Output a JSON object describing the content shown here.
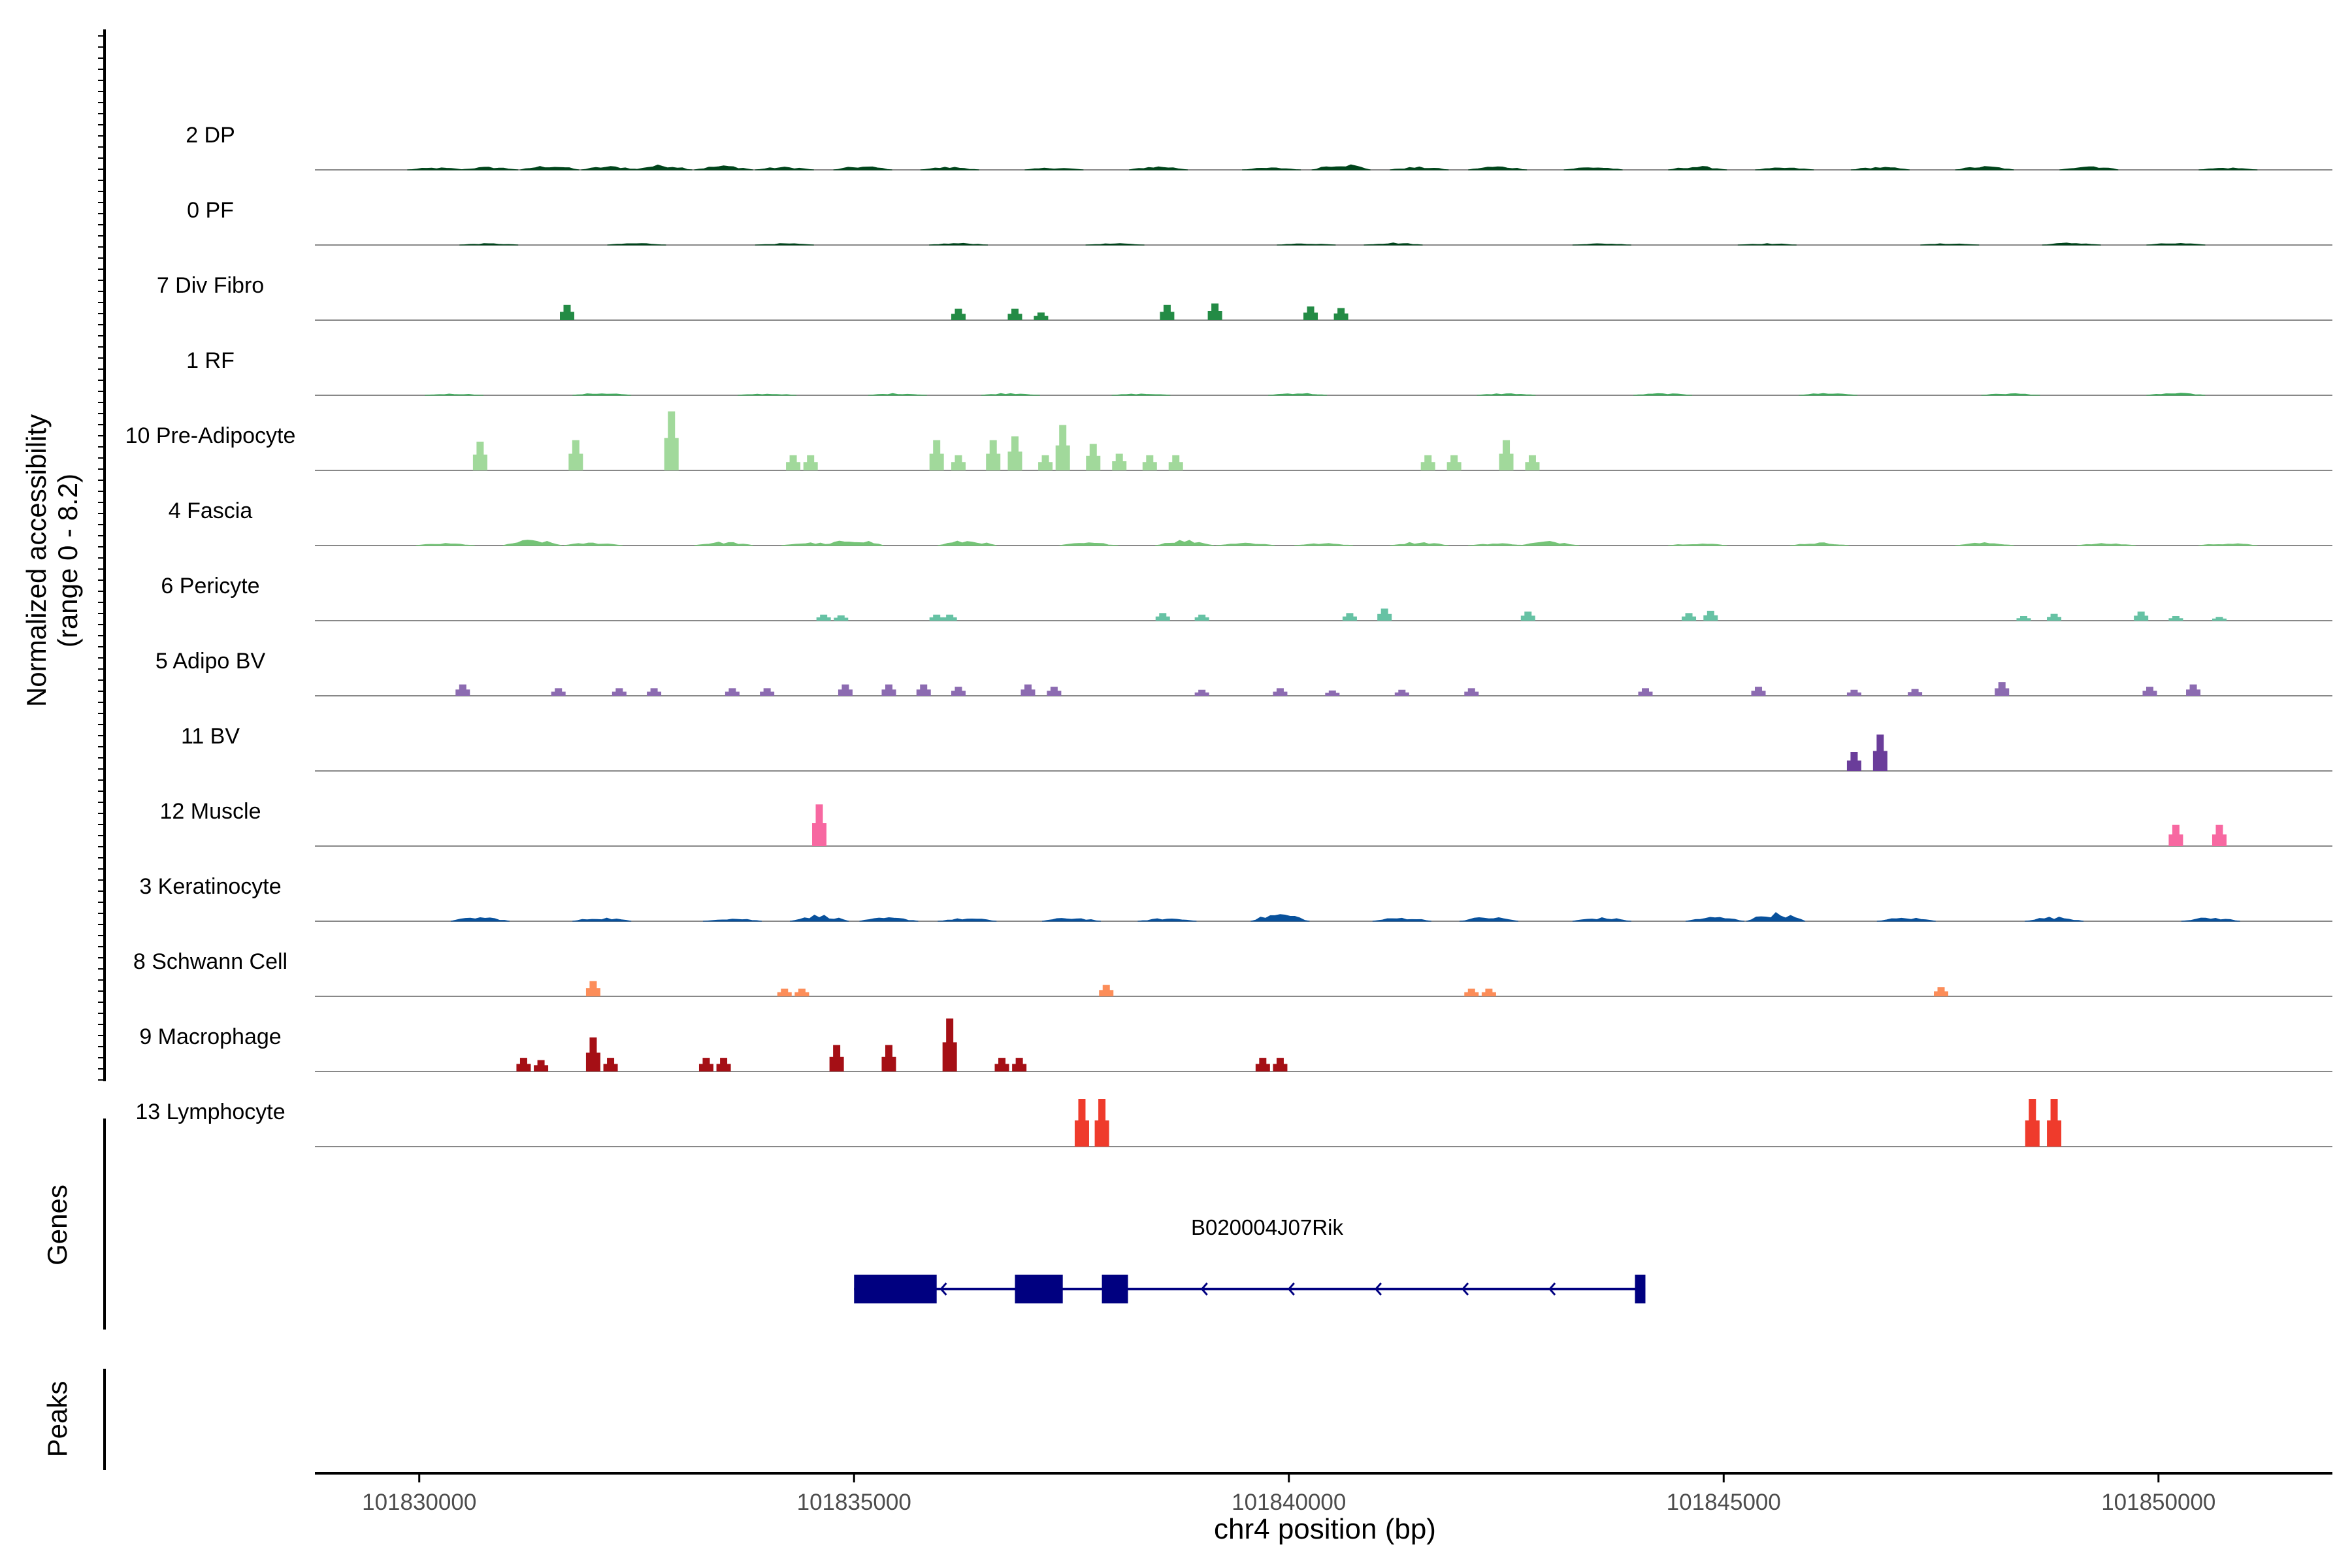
{
  "chart_data": {
    "type": "area",
    "title": "",
    "ylabel_lines": [
      "Normalized accessibility",
      "(range 0 - 8.2)"
    ],
    "y_range": [
      0,
      8.2
    ],
    "xlabel": "chr4 position (bp)",
    "x_range": [
      101828800,
      101852000
    ],
    "x_ticks": [
      101830000,
      101835000,
      101840000,
      101845000,
      101850000
    ],
    "x_tick_labels": [
      "101830000",
      "101835000",
      "101840000",
      "101845000",
      "101850000"
    ],
    "genes_label": "Genes",
    "peaks_label": "Peaks",
    "tracks": [
      {
        "name": "2 DP",
        "color": "#00441b",
        "style": "dense",
        "peaks": [
          [
            101830200,
            0.3
          ],
          [
            101830800,
            0.4
          ],
          [
            101831500,
            0.6
          ],
          [
            101832200,
            0.5
          ],
          [
            101832800,
            0.7
          ],
          [
            101833500,
            0.6
          ],
          [
            101834200,
            0.4
          ],
          [
            101835100,
            0.5
          ],
          [
            101836100,
            0.4
          ],
          [
            101837300,
            0.3
          ],
          [
            101838500,
            0.5
          ],
          [
            101839800,
            0.3
          ],
          [
            101840600,
            0.9
          ],
          [
            101841500,
            0.4
          ],
          [
            101842400,
            0.5
          ],
          [
            101843500,
            0.4
          ],
          [
            101844700,
            0.5
          ],
          [
            101845700,
            0.3
          ],
          [
            101846800,
            0.4
          ],
          [
            101848000,
            0.5
          ],
          [
            101849200,
            0.6
          ],
          [
            101850800,
            0.3
          ]
        ]
      },
      {
        "name": "0 PF",
        "color": "#00441b",
        "style": "dense",
        "peaks": [
          [
            101830800,
            0.2
          ],
          [
            101832500,
            0.25
          ],
          [
            101834200,
            0.2
          ],
          [
            101836200,
            0.25
          ],
          [
            101838000,
            0.2
          ],
          [
            101840200,
            0.2
          ],
          [
            101841200,
            0.3
          ],
          [
            101843600,
            0.2
          ],
          [
            101845500,
            0.2
          ],
          [
            101847600,
            0.2
          ],
          [
            101849000,
            0.3
          ],
          [
            101850200,
            0.25
          ]
        ]
      },
      {
        "name": "7 Div Fibro",
        "color": "#238b45",
        "style": "sparse",
        "peaks": [
          [
            101831700,
            2.0
          ],
          [
            101836200,
            1.5
          ],
          [
            101836850,
            1.5
          ],
          [
            101837150,
            1.0
          ],
          [
            101838600,
            2.0
          ],
          [
            101839150,
            2.2
          ],
          [
            101840250,
            1.8
          ],
          [
            101840600,
            1.6
          ]
        ]
      },
      {
        "name": "1 RF",
        "color": "#41ab5d",
        "style": "dense",
        "peaks": [
          [
            101830400,
            0.2
          ],
          [
            101832100,
            0.3
          ],
          [
            101834000,
            0.2
          ],
          [
            101835500,
            0.25
          ],
          [
            101836800,
            0.3
          ],
          [
            101838300,
            0.2
          ],
          [
            101840100,
            0.3
          ],
          [
            101842500,
            0.25
          ],
          [
            101844300,
            0.25
          ],
          [
            101846200,
            0.3
          ],
          [
            101848300,
            0.25
          ],
          [
            101850200,
            0.3
          ]
        ]
      },
      {
        "name": "10 Pre-Adipocyte",
        "color": "#a1d99b",
        "style": "sparse",
        "peaks": [
          [
            101830700,
            3.8
          ],
          [
            101831800,
            4.0
          ],
          [
            101832900,
            7.8
          ],
          [
            101834300,
            2.0
          ],
          [
            101834500,
            2.0
          ],
          [
            101835950,
            4.0
          ],
          [
            101836200,
            2.0
          ],
          [
            101836600,
            4.0
          ],
          [
            101836850,
            4.5
          ],
          [
            101837200,
            2.0
          ],
          [
            101837400,
            6.0
          ],
          [
            101837750,
            3.5
          ],
          [
            101838050,
            2.2
          ],
          [
            101838400,
            2.0
          ],
          [
            101838700,
            2.0
          ],
          [
            101841600,
            2.0
          ],
          [
            101841900,
            2.0
          ],
          [
            101842500,
            4.0
          ],
          [
            101842800,
            2.0
          ]
        ]
      },
      {
        "name": "4 Fascia",
        "color": "#74c476",
        "style": "dense",
        "peaks": [
          [
            101830300,
            0.3
          ],
          [
            101831300,
            0.8
          ],
          [
            101832000,
            0.4
          ],
          [
            101833500,
            0.5
          ],
          [
            101834500,
            0.4
          ],
          [
            101835000,
            0.9
          ],
          [
            101836300,
            0.7
          ],
          [
            101837700,
            0.4
          ],
          [
            101838800,
            0.8
          ],
          [
            101839500,
            0.4
          ],
          [
            101840400,
            0.3
          ],
          [
            101841500,
            0.5
          ],
          [
            101842400,
            0.3
          ],
          [
            101843000,
            0.6
          ],
          [
            101844700,
            0.3
          ],
          [
            101846100,
            0.4
          ],
          [
            101848000,
            0.4
          ],
          [
            101849400,
            0.3
          ],
          [
            101850800,
            0.3
          ]
        ]
      },
      {
        "name": "6 Pericyte",
        "color": "#66c2a4",
        "style": "sparse",
        "peaks": [
          [
            101834650,
            0.8
          ],
          [
            101834850,
            0.7
          ],
          [
            101835950,
            0.8
          ],
          [
            101836100,
            0.8
          ],
          [
            101838550,
            1.0
          ],
          [
            101839000,
            0.8
          ],
          [
            101840700,
            1.0
          ],
          [
            101841100,
            1.6
          ],
          [
            101842750,
            1.2
          ],
          [
            101844600,
            1.0
          ],
          [
            101844850,
            1.3
          ],
          [
            101848450,
            0.6
          ],
          [
            101848800,
            0.9
          ],
          [
            101849800,
            1.2
          ],
          [
            101850200,
            0.6
          ],
          [
            101850700,
            0.5
          ]
        ]
      },
      {
        "name": "5 Adipo BV",
        "color": "#8c6bb1",
        "style": "sparse",
        "peaks": [
          [
            101830500,
            1.5
          ],
          [
            101831600,
            1.0
          ],
          [
            101832300,
            1.0
          ],
          [
            101832700,
            1.0
          ],
          [
            101833600,
            1.0
          ],
          [
            101834000,
            1.0
          ],
          [
            101834900,
            1.5
          ],
          [
            101835400,
            1.5
          ],
          [
            101835800,
            1.5
          ],
          [
            101836200,
            1.2
          ],
          [
            101837000,
            1.5
          ],
          [
            101837300,
            1.2
          ],
          [
            101839000,
            0.8
          ],
          [
            101839900,
            1.0
          ],
          [
            101840500,
            0.7
          ],
          [
            101841300,
            0.8
          ],
          [
            101842100,
            1.0
          ],
          [
            101844100,
            1.0
          ],
          [
            101845400,
            1.2
          ],
          [
            101846500,
            0.8
          ],
          [
            101847200,
            0.9
          ],
          [
            101848200,
            1.8
          ],
          [
            101849900,
            1.2
          ],
          [
            101850400,
            1.5
          ]
        ]
      },
      {
        "name": "11 BV",
        "color": "#6a3d9a",
        "style": "sparse",
        "peaks": [
          [
            101846500,
            2.5
          ],
          [
            101846800,
            4.8
          ]
        ]
      },
      {
        "name": "12 Muscle",
        "color": "#f768a1",
        "style": "sparse",
        "peaks": [
          [
            101834600,
            5.5
          ],
          [
            101850200,
            2.8
          ],
          [
            101850700,
            2.8
          ]
        ]
      },
      {
        "name": "3 Keratinocyte",
        "color": "#08519c",
        "style": "dense",
        "peaks": [
          [
            101830700,
            0.6
          ],
          [
            101832100,
            0.5
          ],
          [
            101833600,
            0.4
          ],
          [
            101834600,
            0.9
          ],
          [
            101835400,
            0.5
          ],
          [
            101836300,
            0.4
          ],
          [
            101837500,
            0.5
          ],
          [
            101838600,
            0.4
          ],
          [
            101839900,
            1.1
          ],
          [
            101841300,
            0.5
          ],
          [
            101842300,
            0.6
          ],
          [
            101843600,
            0.5
          ],
          [
            101844900,
            0.6
          ],
          [
            101845600,
            1.2
          ],
          [
            101847100,
            0.5
          ],
          [
            101848800,
            0.6
          ],
          [
            101850600,
            0.5
          ]
        ]
      },
      {
        "name": "8 Schwann Cell",
        "color": "#fc8d59",
        "style": "sparse",
        "peaks": [
          [
            101832000,
            2.0
          ],
          [
            101834200,
            1.0
          ],
          [
            101834400,
            1.0
          ],
          [
            101837900,
            1.5
          ],
          [
            101842100,
            1.0
          ],
          [
            101842300,
            1.0
          ],
          [
            101847500,
            1.2
          ]
        ]
      },
      {
        "name": "9 Macrophage",
        "color": "#a50f15",
        "style": "sparse",
        "peaks": [
          [
            101831200,
            1.8
          ],
          [
            101831400,
            1.5
          ],
          [
            101832000,
            4.5
          ],
          [
            101832200,
            1.8
          ],
          [
            101833300,
            1.8
          ],
          [
            101833500,
            1.8
          ],
          [
            101834800,
            3.5
          ],
          [
            101835400,
            3.5
          ],
          [
            101836100,
            7.0
          ],
          [
            101836700,
            1.8
          ],
          [
            101836900,
            1.8
          ],
          [
            101839700,
            1.8
          ],
          [
            101839900,
            1.8
          ]
        ]
      },
      {
        "name": "13 Lymphocyte",
        "color": "#ef3b2c",
        "style": "sparse",
        "peaks": [
          [
            101837620,
            6.3
          ],
          [
            101837850,
            6.3
          ],
          [
            101848550,
            6.3
          ],
          [
            101848800,
            6.3
          ]
        ]
      }
    ],
    "gene": {
      "name": "B020004J07Rik",
      "strand": "-",
      "start": 101835000,
      "end": 101844100,
      "color": "#000080",
      "exons": [
        [
          101835000,
          101835950
        ],
        [
          101836850,
          101837400
        ],
        [
          101837850,
          101838150
        ],
        [
          101843980,
          101844100
        ]
      ]
    }
  }
}
